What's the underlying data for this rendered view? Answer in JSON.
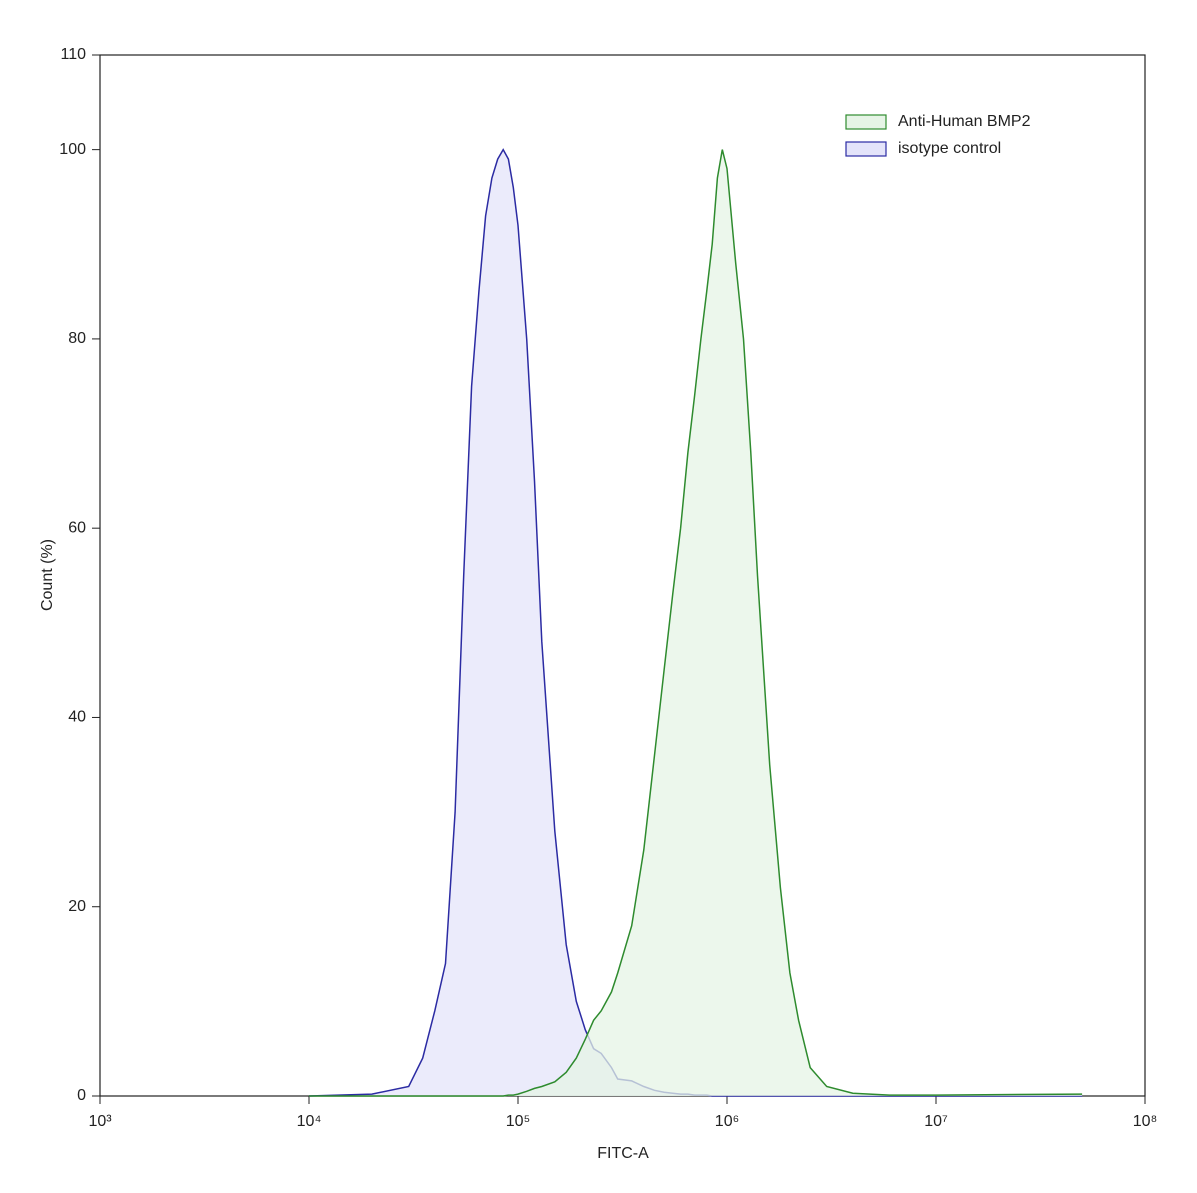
{
  "chart_data": {
    "type": "area",
    "xlabel": "FITC-A",
    "ylabel": "Count (%)",
    "log_x": true,
    "xlim": [
      1000,
      100000000
    ],
    "xticks": [
      {
        "value": 1000,
        "label": "10³"
      },
      {
        "value": 10000,
        "label": "10⁴"
      },
      {
        "value": 100000,
        "label": "10⁵"
      },
      {
        "value": 1000000,
        "label": "10⁶"
      },
      {
        "value": 10000000,
        "label": "10⁷"
      },
      {
        "value": 100000000,
        "label": "10⁸"
      }
    ],
    "ylim": [
      0,
      110
    ],
    "yticks": [
      0,
      20,
      40,
      60,
      80,
      100,
      110
    ],
    "legend": "upper right",
    "x": [
      10000,
      20000,
      30000,
      35000,
      40000,
      45000,
      50000,
      55000,
      60000,
      65000,
      70000,
      75000,
      80000,
      85000,
      90000,
      95000,
      100000,
      110000,
      120000,
      130000,
      150000,
      170000,
      190000,
      210000,
      230000,
      250000,
      280000,
      300000,
      350000,
      400000,
      450000,
      500000,
      550000,
      600000,
      650000,
      700000,
      750000,
      800000,
      850000,
      900000,
      950000,
      1000000,
      1100000,
      1200000,
      1300000,
      1400000,
      1600000,
      1800000,
      2000000,
      2200000,
      2500000,
      3000000,
      4000000,
      6000000,
      10000000,
      50000000
    ],
    "series": [
      {
        "name": "Anti-Human BMP2",
        "color": "#2e8b2e",
        "fill": "#e6f4e6",
        "values": [
          0,
          0,
          0,
          0,
          0,
          0,
          0,
          0,
          0,
          0,
          0,
          0,
          0,
          0,
          0.1,
          0.1,
          0.2,
          0.5,
          0.8,
          1,
          1.5,
          2.5,
          4,
          6,
          8,
          9,
          11,
          13,
          18,
          26,
          36,
          45,
          53,
          60,
          68,
          74,
          80,
          85,
          90,
          97,
          100,
          98,
          88,
          80,
          68,
          55,
          35,
          22,
          13,
          8,
          3,
          1,
          0.3,
          0.1,
          0.1,
          0.2
        ]
      },
      {
        "name": "isotype control",
        "color": "#2b2ba3",
        "fill": "#e4e4fa",
        "values": [
          0,
          0.2,
          1,
          4,
          9,
          14,
          30,
          55,
          75,
          85,
          93,
          97,
          99,
          100,
          99,
          96,
          92,
          80,
          65,
          48,
          28,
          16,
          10,
          7,
          5,
          4.5,
          3,
          1.8,
          1.6,
          1,
          0.6,
          0.4,
          0.3,
          0.2,
          0.2,
          0.1,
          0.1,
          0.1,
          0,
          0,
          0,
          0,
          0,
          0,
          0,
          0,
          0,
          0,
          0,
          0,
          0,
          0,
          0,
          0,
          0,
          0
        ]
      }
    ]
  }
}
